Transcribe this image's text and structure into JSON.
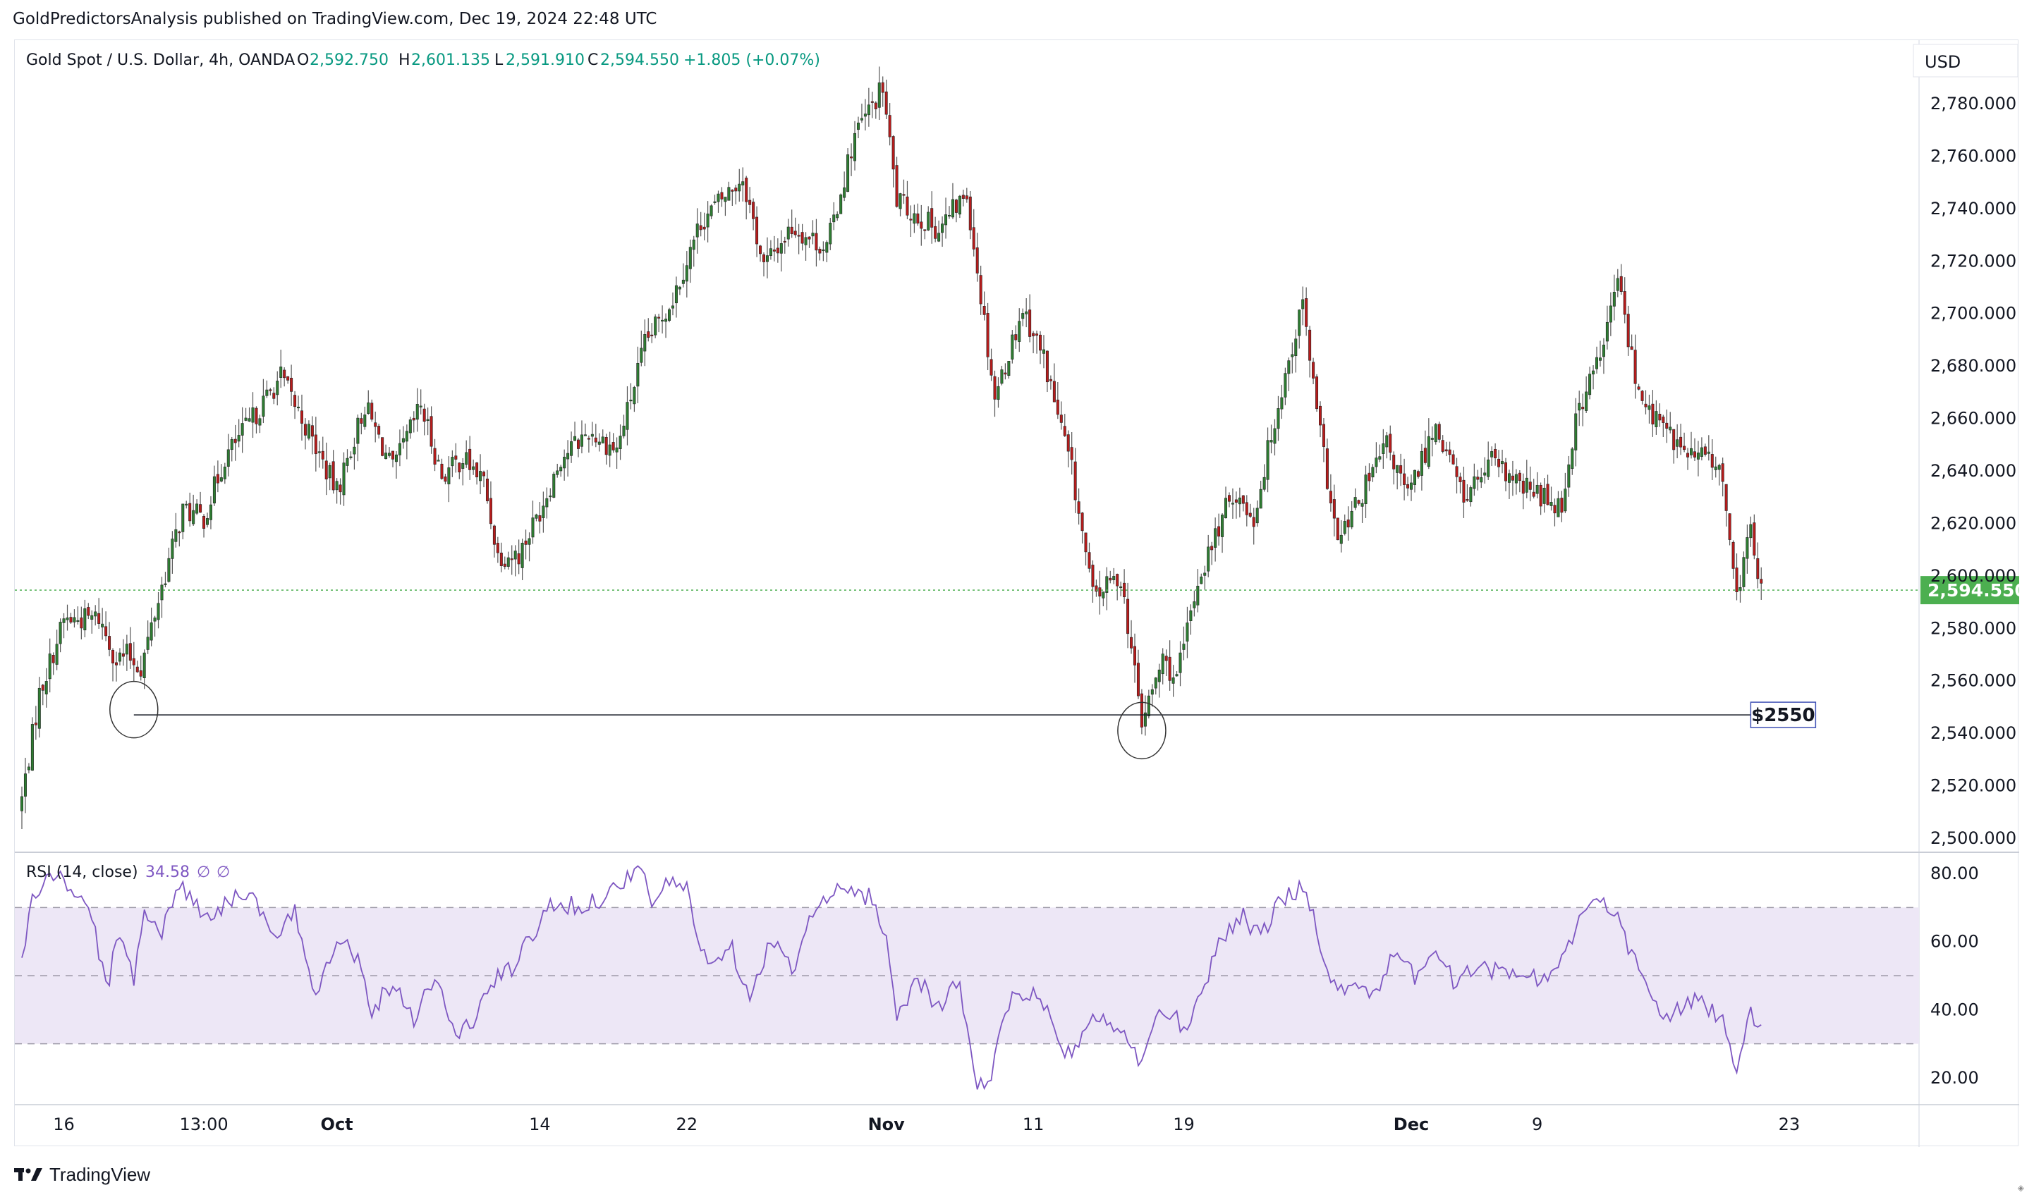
{
  "header": {
    "published": "GoldPredictorsAnalysis published on TradingView.com, Dec 19, 2024 22:48 UTC"
  },
  "legend": {
    "symbol": "Gold Spot / U.S. Dollar, 4h, OANDA",
    "o_label": "O",
    "o_value": "2,592.750",
    "h_label": "H",
    "h_value": "2,601.135",
    "l_label": "L",
    "l_value": "2,591.910",
    "c_label": "C",
    "c_value": "2,594.550",
    "change": "+1.805 (+0.07%)"
  },
  "currency": "USD",
  "rsi_legend": {
    "label": "RSI (14, close)",
    "value": "34.58",
    "extra1": "∅",
    "extra2": "∅"
  },
  "footer": {
    "brand": "TradingView"
  },
  "colors": {
    "up": "#26a69a",
    "down": "#ef5350",
    "candle_up": "#2e7d32",
    "candle_down": "#b71c1c",
    "last_price": "#4caf50",
    "rsi_line": "#7e57c2",
    "rsi_band": "#ede7f6",
    "support": "#131722",
    "axis_text": "#131722"
  },
  "chart_data": [
    {
      "type": "candlestick",
      "title": "Gold Spot / U.S. Dollar, 4h, OANDA",
      "ylim": [
        2500,
        2790
      ],
      "y_ticks": [
        "2,780.000",
        "2,760.000",
        "2,740.000",
        "2,720.000",
        "2,700.000",
        "2,680.000",
        "2,660.000",
        "2,640.000",
        "2,620.000",
        "2,600.000",
        "2,580.000",
        "2,560.000",
        "2,540.000",
        "2,520.000",
        "2,500.000"
      ],
      "y_tick_values": [
        2780,
        2760,
        2740,
        2720,
        2700,
        2680,
        2660,
        2640,
        2620,
        2600,
        2580,
        2560,
        2540,
        2520,
        2500
      ],
      "x_ticks": [
        "16",
        "13:00",
        "Oct",
        "14",
        "22",
        "Nov",
        "11",
        "19",
        "Dec",
        "9",
        "23"
      ],
      "x_tick_bold": [
        "Oct",
        "Nov",
        "Dec"
      ],
      "x_range_bars": [
        0,
        540
      ],
      "x_tick_bars": [
        12,
        52,
        90,
        148,
        190,
        247,
        289,
        332,
        397,
        433,
        505
      ],
      "last_price": 2594.55,
      "last_price_label": "2,594.550",
      "support_level": 2547,
      "support_label": "$2550",
      "support_start_bar": 32,
      "support_end_bar": 494,
      "support_touches": [
        {
          "bar": 32,
          "price": 2549
        },
        {
          "bar": 320,
          "price": 2541
        }
      ],
      "close_anchors": [
        [
          0,
          2515
        ],
        [
          5,
          2555
        ],
        [
          12,
          2583
        ],
        [
          22,
          2584
        ],
        [
          27,
          2568
        ],
        [
          30,
          2570
        ],
        [
          34,
          2565
        ],
        [
          40,
          2596
        ],
        [
          46,
          2625
        ],
        [
          52,
          2622
        ],
        [
          58,
          2645
        ],
        [
          66,
          2660
        ],
        [
          74,
          2676
        ],
        [
          80,
          2660
        ],
        [
          90,
          2632
        ],
        [
          98,
          2665
        ],
        [
          106,
          2640
        ],
        [
          114,
          2665
        ],
        [
          120,
          2638
        ],
        [
          126,
          2645
        ],
        [
          132,
          2636
        ],
        [
          136,
          2608
        ],
        [
          142,
          2608
        ],
        [
          148,
          2625
        ],
        [
          154,
          2645
        ],
        [
          162,
          2655
        ],
        [
          170,
          2648
        ],
        [
          178,
          2688
        ],
        [
          186,
          2706
        ],
        [
          194,
          2735
        ],
        [
          206,
          2752
        ],
        [
          212,
          2718
        ],
        [
          220,
          2733
        ],
        [
          230,
          2725
        ],
        [
          238,
          2768
        ],
        [
          246,
          2786
        ],
        [
          250,
          2743
        ],
        [
          256,
          2737
        ],
        [
          262,
          2732
        ],
        [
          270,
          2746
        ],
        [
          278,
          2668
        ],
        [
          286,
          2702
        ],
        [
          292,
          2683
        ],
        [
          300,
          2640
        ],
        [
          306,
          2592
        ],
        [
          314,
          2600
        ],
        [
          320,
          2544
        ],
        [
          326,
          2568
        ],
        [
          330,
          2560
        ],
        [
          336,
          2598
        ],
        [
          346,
          2632
        ],
        [
          352,
          2622
        ],
        [
          358,
          2660
        ],
        [
          366,
          2704
        ],
        [
          370,
          2662
        ],
        [
          376,
          2612
        ],
        [
          384,
          2634
        ],
        [
          390,
          2650
        ],
        [
          396,
          2630
        ],
        [
          404,
          2658
        ],
        [
          412,
          2630
        ],
        [
          420,
          2643
        ],
        [
          428,
          2634
        ],
        [
          432,
          2632
        ],
        [
          440,
          2627
        ],
        [
          444,
          2660
        ],
        [
          452,
          2688
        ],
        [
          456,
          2714
        ],
        [
          462,
          2668
        ],
        [
          470,
          2655
        ],
        [
          476,
          2646
        ],
        [
          484,
          2645
        ],
        [
          488,
          2618
        ],
        [
          490,
          2592
        ],
        [
          494,
          2618
        ],
        [
          497,
          2594
        ]
      ]
    },
    {
      "type": "line",
      "title": "RSI (14, close)",
      "ylim": [
        15,
        85
      ],
      "y_ticks": [
        "80.00",
        "60.00",
        "40.00",
        "20.00"
      ],
      "y_tick_values": [
        80,
        60,
        40,
        20
      ],
      "band": [
        30,
        70
      ],
      "midline": 50,
      "last_value": 34.58,
      "anchors": [
        [
          0,
          55
        ],
        [
          3,
          72
        ],
        [
          8,
          80
        ],
        [
          15,
          75
        ],
        [
          20,
          68
        ],
        [
          24,
          46
        ],
        [
          28,
          62
        ],
        [
          32,
          50
        ],
        [
          35,
          70
        ],
        [
          40,
          62
        ],
        [
          45,
          78
        ],
        [
          50,
          70
        ],
        [
          55,
          68
        ],
        [
          60,
          73
        ],
        [
          65,
          75
        ],
        [
          72,
          60
        ],
        [
          78,
          68
        ],
        [
          84,
          45
        ],
        [
          90,
          62
        ],
        [
          96,
          55
        ],
        [
          100,
          40
        ],
        [
          106,
          48
        ],
        [
          112,
          38
        ],
        [
          118,
          50
        ],
        [
          124,
          32
        ],
        [
          130,
          38
        ],
        [
          134,
          48
        ],
        [
          140,
          52
        ],
        [
          146,
          62
        ],
        [
          152,
          72
        ],
        [
          158,
          70
        ],
        [
          164,
          72
        ],
        [
          170,
          76
        ],
        [
          176,
          82
        ],
        [
          180,
          72
        ],
        [
          186,
          78
        ],
        [
          190,
          75
        ],
        [
          196,
          52
        ],
        [
          202,
          60
        ],
        [
          208,
          45
        ],
        [
          214,
          60
        ],
        [
          220,
          52
        ],
        [
          226,
          68
        ],
        [
          232,
          74
        ],
        [
          238,
          75
        ],
        [
          244,
          72
        ],
        [
          247,
          60
        ],
        [
          250,
          38
        ],
        [
          256,
          50
        ],
        [
          262,
          40
        ],
        [
          268,
          48
        ],
        [
          272,
          20
        ],
        [
          276,
          18
        ],
        [
          282,
          42
        ],
        [
          288,
          45
        ],
        [
          294,
          38
        ],
        [
          298,
          25
        ],
        [
          304,
          35
        ],
        [
          310,
          38
        ],
        [
          316,
          30
        ],
        [
          320,
          25
        ],
        [
          326,
          40
        ],
        [
          332,
          35
        ],
        [
          336,
          42
        ],
        [
          342,
          60
        ],
        [
          348,
          68
        ],
        [
          354,
          62
        ],
        [
          360,
          72
        ],
        [
          366,
          76
        ],
        [
          370,
          65
        ],
        [
          374,
          46
        ],
        [
          380,
          48
        ],
        [
          386,
          45
        ],
        [
          392,
          55
        ],
        [
          398,
          50
        ],
        [
          404,
          58
        ],
        [
          410,
          46
        ],
        [
          416,
          55
        ],
        [
          422,
          50
        ],
        [
          428,
          52
        ],
        [
          434,
          48
        ],
        [
          440,
          55
        ],
        [
          446,
          68
        ],
        [
          450,
          72
        ],
        [
          456,
          66
        ],
        [
          462,
          52
        ],
        [
          468,
          38
        ],
        [
          474,
          40
        ],
        [
          480,
          43
        ],
        [
          486,
          36
        ],
        [
          490,
          22
        ],
        [
          494,
          38
        ],
        [
          497,
          35
        ]
      ]
    }
  ]
}
